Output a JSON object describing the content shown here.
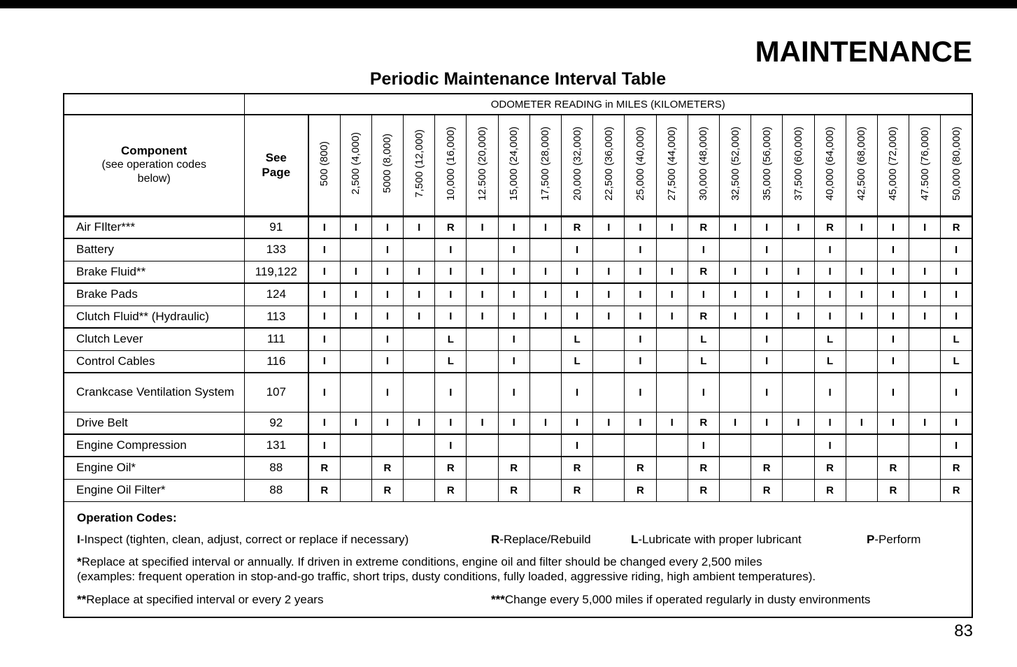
{
  "page": {
    "title": "MAINTENANCE",
    "subtitle": "Periodic Maintenance Interval Table",
    "page_number": "83"
  },
  "table": {
    "odometer_header": "ODOMETER READING in MILES (KILOMETERS)",
    "component_header": "Component",
    "component_subheader": "(see operation codes below)",
    "see_page_line1": "See",
    "see_page_line2": "Page",
    "columns": [
      "500 (800)",
      "2,500 (4,000)",
      "5000 (8,000)",
      "7,500 (12,000)",
      "10,000 (16,000)",
      "12.500 (20,000)",
      "15,000 (24,000)",
      "17,500 (28,000)",
      "20,000 (32,000)",
      "22,500 (36,000)",
      "25,000 (40,000)",
      "27,500 (44,000)",
      "30,000 (48,000)",
      "32,500 (52,000)",
      "35,000 (56,000)",
      "37,500 (60,000)",
      "40,000 (64,000)",
      "42,500 (68,000)",
      "45,000 (72,000)",
      "47.500 (76,000)",
      "50,000 (80,000)"
    ],
    "rows": [
      {
        "component": "Air FIlter***",
        "page": "91",
        "cells": [
          "I",
          "I",
          "I",
          "I",
          "R",
          "I",
          "I",
          "I",
          "R",
          "I",
          "I",
          "I",
          "R",
          "I",
          "I",
          "I",
          "R",
          "I",
          "I",
          "I",
          "R"
        ]
      },
      {
        "component": "Battery",
        "page": "133",
        "cells": [
          "I",
          "",
          "I",
          "",
          "I",
          "",
          "I",
          "",
          "I",
          "",
          "I",
          "",
          "I",
          "",
          "I",
          "",
          "I",
          "",
          "I",
          "",
          "I"
        ]
      },
      {
        "component": "Brake Fluid**",
        "page": "119,122",
        "cells": [
          "I",
          "I",
          "I",
          "I",
          "I",
          "I",
          "I",
          "I",
          "I",
          "I",
          "I",
          "I",
          "R",
          "I",
          "I",
          "I",
          "I",
          "I",
          "I",
          "I",
          "I"
        ]
      },
      {
        "component": "Brake Pads",
        "page": "124",
        "cells": [
          "I",
          "I",
          "I",
          "I",
          "I",
          "I",
          "I",
          "I",
          "I",
          "I",
          "I",
          "I",
          "I",
          "I",
          "I",
          "I",
          "I",
          "I",
          "I",
          "I",
          "I"
        ]
      },
      {
        "component": "Clutch Fluid** (Hydraulic)",
        "page": "113",
        "cells": [
          "I",
          "I",
          "I",
          "I",
          "I",
          "I",
          "I",
          "I",
          "I",
          "I",
          "I",
          "I",
          "R",
          "I",
          "I",
          "I",
          "I",
          "I",
          "I",
          "I",
          "I"
        ]
      },
      {
        "component": "Clutch Lever",
        "page": "111",
        "cells": [
          "I",
          "",
          "I",
          "",
          "L",
          "",
          "I",
          "",
          "L",
          "",
          "I",
          "",
          "L",
          "",
          "I",
          "",
          "L",
          "",
          "I",
          "",
          "L"
        ]
      },
      {
        "component": "Control Cables",
        "page": "116",
        "cells": [
          "I",
          "",
          "I",
          "",
          "L",
          "",
          "I",
          "",
          "L",
          "",
          "I",
          "",
          "L",
          "",
          "I",
          "",
          "L",
          "",
          "I",
          "",
          "L"
        ]
      },
      {
        "component": "Crankcase Ventilation System",
        "page": "107",
        "cells": [
          "I",
          "",
          "I",
          "",
          "I",
          "",
          "I",
          "",
          "I",
          "",
          "I",
          "",
          "I",
          "",
          "I",
          "",
          "I",
          "",
          "I",
          "",
          "I"
        ]
      },
      {
        "component": "Drive Belt",
        "page": "92",
        "cells": [
          "I",
          "I",
          "I",
          "I",
          "I",
          "I",
          "I",
          "I",
          "I",
          "I",
          "I",
          "I",
          "R",
          "I",
          "I",
          "I",
          "I",
          "I",
          "I",
          "I",
          "I"
        ]
      },
      {
        "component": "Engine Compression",
        "page": "131",
        "cells": [
          "I",
          "",
          "",
          "",
          "I",
          "",
          "",
          "",
          "I",
          "",
          "",
          "",
          "I",
          "",
          "",
          "",
          "I",
          "",
          "",
          "",
          "I"
        ]
      },
      {
        "component": "Engine Oil*",
        "page": "88",
        "cells": [
          "R",
          "",
          "R",
          "",
          "R",
          "",
          "R",
          "",
          "R",
          "",
          "R",
          "",
          "R",
          "",
          "R",
          "",
          "R",
          "",
          "R",
          "",
          "R"
        ]
      },
      {
        "component": "Engine Oil Filter*",
        "page": "88",
        "cells": [
          "R",
          "",
          "R",
          "",
          "R",
          "",
          "R",
          "",
          "R",
          "",
          "R",
          "",
          "R",
          "",
          "R",
          "",
          "R",
          "",
          "R",
          "",
          "R"
        ]
      }
    ]
  },
  "footer": {
    "title": "Operation Codes:",
    "codes": [
      {
        "code": "I",
        "desc": "-Inspect (tighten, clean, adjust, correct or replace if necessary)"
      },
      {
        "code": "R",
        "desc": "-Replace/Rebuild"
      },
      {
        "code": "L",
        "desc": "-Lubricate with proper lubricant"
      },
      {
        "code": "P",
        "desc": "-Perform"
      }
    ],
    "note1_prefix": "*",
    "note1_line1": "Replace at specified interval or annually. If driven in extreme conditions, engine oil and filter should be changed every 2,500 miles",
    "note1_line2": "(examples: frequent operation in stop-and-go traffic, short trips, dusty conditions, fully loaded, aggressive riding, high ambient temperatures).",
    "note2_prefix": "**",
    "note2": "Replace at specified interval or every 2 years",
    "note3_prefix": "***",
    "note3": "Change every 5,000 miles if operated regularly in dusty environments"
  }
}
